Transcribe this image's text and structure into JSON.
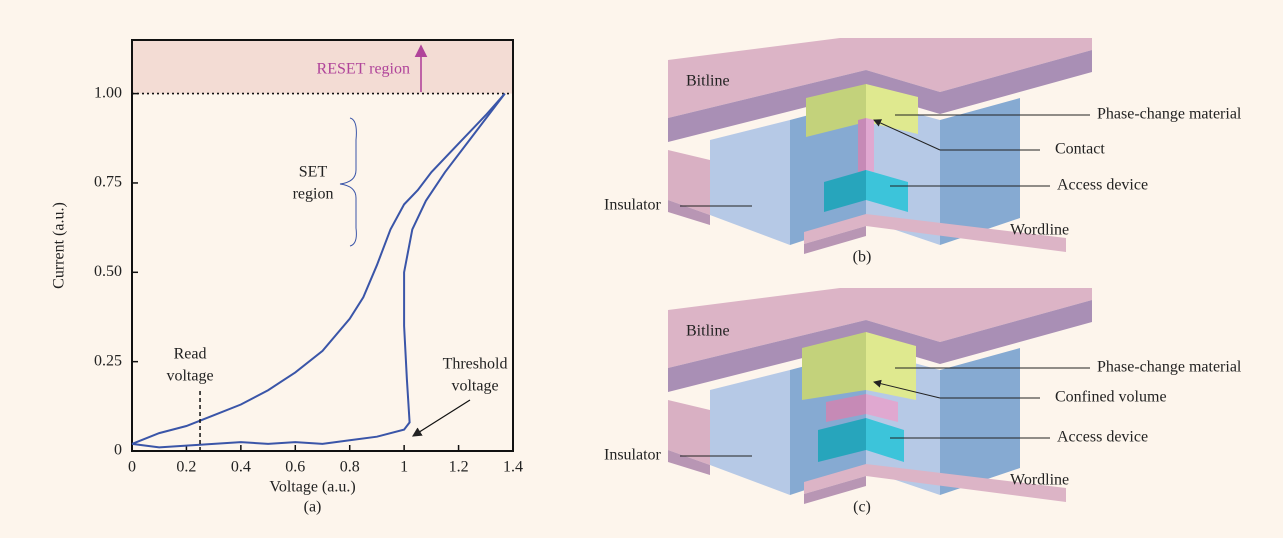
{
  "chart_data": {
    "type": "line",
    "caption": "(a)",
    "xlabel": "Voltage  (a.u.)",
    "ylabel": "Current  (a.u.)",
    "xlim": [
      0,
      1.4
    ],
    "xticks": [
      0,
      0.2,
      0.4,
      0.6,
      0.8,
      1.0,
      1.2,
      1.4
    ],
    "ylim": [
      0,
      1.15
    ],
    "yticks": [
      0,
      0.25,
      {
        "value": 0.5,
        "label": "0.50"
      },
      0.75,
      {
        "value": 1,
        "label": "1.00"
      }
    ],
    "series": [
      {
        "color": "#3a55a8",
        "x": [
          0,
          0.1,
          0.2,
          0.3,
          0.4,
          0.5,
          0.6,
          0.7,
          0.8,
          0.85,
          0.9,
          0.95,
          1.0,
          1.05,
          1.1,
          1.2,
          1.3,
          1.37
        ],
        "values": [
          0.02,
          0.05,
          0.07,
          0.1,
          0.13,
          0.17,
          0.22,
          0.28,
          0.37,
          0.43,
          0.52,
          0.62,
          0.69,
          0.73,
          0.78,
          0.86,
          0.94,
          1.0
        ]
      },
      {
        "color": "#3a55a8",
        "x": [
          0,
          0.1,
          0.2,
          0.3,
          0.4,
          0.5,
          0.6,
          0.7,
          0.8,
          0.9,
          1.0,
          1.02,
          1.01,
          1.0,
          1.0,
          1.03,
          1.08,
          1.15,
          1.25,
          1.32,
          1.37
        ],
        "values": [
          0.02,
          0.01,
          0.015,
          0.02,
          0.025,
          0.02,
          0.025,
          0.02,
          0.03,
          0.04,
          0.06,
          0.08,
          0.2,
          0.35,
          0.5,
          0.62,
          0.7,
          0.78,
          0.88,
          0.95,
          1.0
        ]
      }
    ],
    "annotations": [
      {
        "text": "RESET region"
      },
      {
        "lines": [
          "SET",
          "region"
        ]
      },
      {
        "lines": [
          "Read",
          "voltage"
        ],
        "x": 0.25
      },
      {
        "lines": [
          "Threshold",
          "voltage"
        ]
      }
    ]
  },
  "diagrams": [
    {
      "caption": "(b)",
      "bitline": "Bitline",
      "wordline": "Wordline",
      "insulator": "Insulator",
      "material": "Phase-change material",
      "middle": "Contact",
      "access": "Access device"
    },
    {
      "caption": "(c)",
      "bitline": "Bitline",
      "wordline": "Wordline",
      "insulator": "Insulator",
      "material": "Phase-change material",
      "middle": "Confined volume",
      "access": "Access device"
    }
  ]
}
